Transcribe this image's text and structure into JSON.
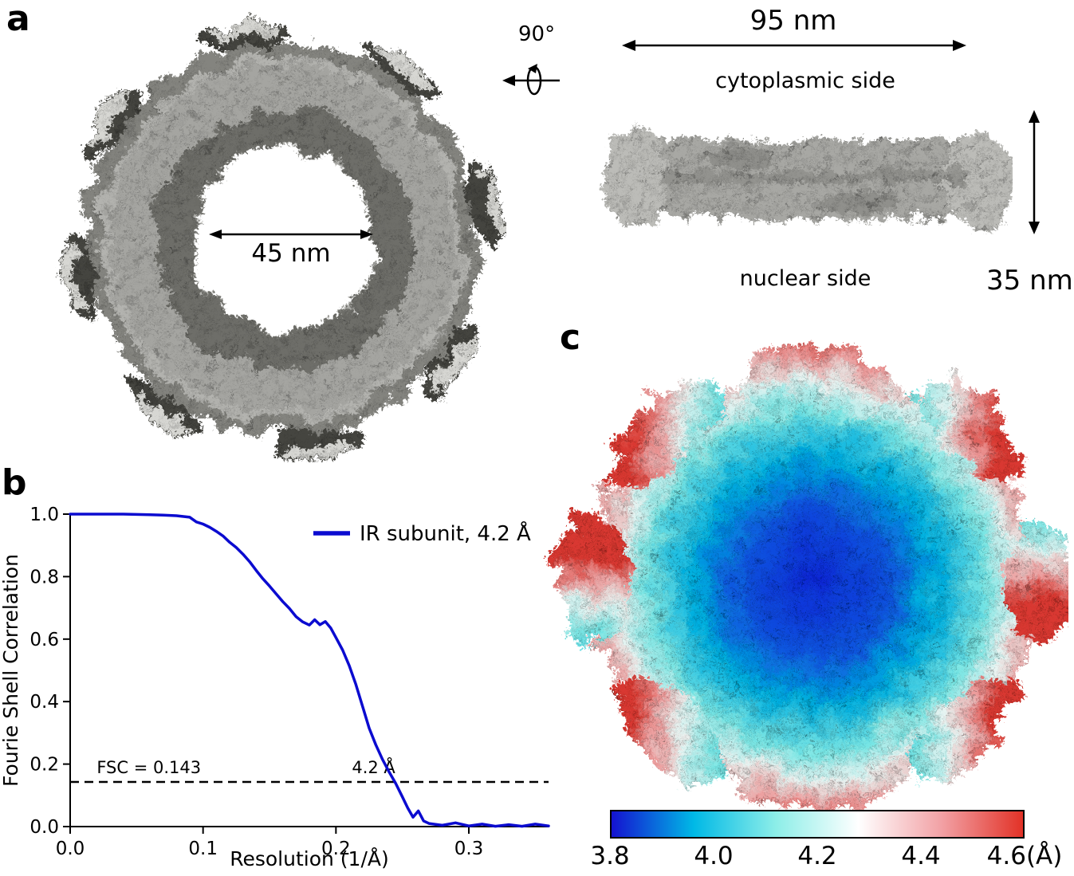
{
  "panels": {
    "a": "a",
    "b": "b",
    "c": "c"
  },
  "panel_a": {
    "top_view": {
      "inner_diameter_label": "45 nm"
    },
    "rotation_label": "90°",
    "side_view": {
      "width_label": "95 nm",
      "top_label": "cytoplasmic side",
      "bottom_label": "nuclear side",
      "height_label": "35 nm"
    }
  },
  "chart_data": {
    "type": "line",
    "title": "",
    "xlabel": "Resolution (1/Å)",
    "ylabel": "Fourie Shell Correlation",
    "xlim": [
      0.0,
      0.36
    ],
    "ylim": [
      0.0,
      1.0
    ],
    "xticks": [
      0.0,
      0.1,
      0.2,
      0.3
    ],
    "xtick_labels": [
      "0.0",
      "0.1",
      "0.2",
      "0.3"
    ],
    "yticks": [
      0.0,
      0.2,
      0.4,
      0.6,
      0.8,
      1.0
    ],
    "ytick_labels": [
      "0.0",
      "0.2",
      "0.4",
      "0.6",
      "0.8",
      "1.0"
    ],
    "grid": false,
    "legend_position": "upper right",
    "threshold": {
      "y": 0.143,
      "style": "dashed",
      "color": "#000000",
      "label_left": "FSC = 0.143",
      "label_left_x": 0.02,
      "label_right": "4.2 Å",
      "label_right_x": 0.212
    },
    "series": [
      {
        "name": "IR subunit, 4.2 Å",
        "color": "#0b0bd0",
        "x": [
          0.0,
          0.01,
          0.02,
          0.03,
          0.04,
          0.05,
          0.06,
          0.07,
          0.08,
          0.09,
          0.095,
          0.1,
          0.105,
          0.11,
          0.115,
          0.12,
          0.125,
          0.13,
          0.135,
          0.14,
          0.145,
          0.15,
          0.155,
          0.16,
          0.165,
          0.17,
          0.175,
          0.18,
          0.184,
          0.188,
          0.192,
          0.196,
          0.2,
          0.205,
          0.21,
          0.215,
          0.22,
          0.225,
          0.23,
          0.235,
          0.24,
          0.245,
          0.25,
          0.254,
          0.258,
          0.262,
          0.266,
          0.27,
          0.28,
          0.29,
          0.3,
          0.31,
          0.32,
          0.33,
          0.34,
          0.35,
          0.36
        ],
        "y": [
          1.0,
          1.0,
          1.0,
          1.0,
          1.0,
          0.999,
          0.998,
          0.997,
          0.995,
          0.99,
          0.975,
          0.968,
          0.958,
          0.945,
          0.93,
          0.91,
          0.893,
          0.872,
          0.848,
          0.82,
          0.793,
          0.77,
          0.745,
          0.72,
          0.698,
          0.672,
          0.655,
          0.645,
          0.662,
          0.646,
          0.656,
          0.636,
          0.605,
          0.565,
          0.515,
          0.455,
          0.385,
          0.315,
          0.262,
          0.215,
          0.175,
          0.138,
          0.095,
          0.06,
          0.03,
          0.05,
          0.018,
          0.01,
          0.004,
          0.012,
          0.002,
          0.008,
          0.001,
          0.006,
          0.001,
          0.008,
          0.002
        ]
      }
    ]
  },
  "panel_c": {
    "colorbar": {
      "ticks": [
        "3.8",
        "4.0",
        "4.2",
        "4.4",
        "4.6(Å)"
      ],
      "gradient": [
        "#1412d0",
        "#00b9e6",
        "#8deee8",
        "#ffffff",
        "#f2a2a6",
        "#e23227"
      ]
    }
  }
}
